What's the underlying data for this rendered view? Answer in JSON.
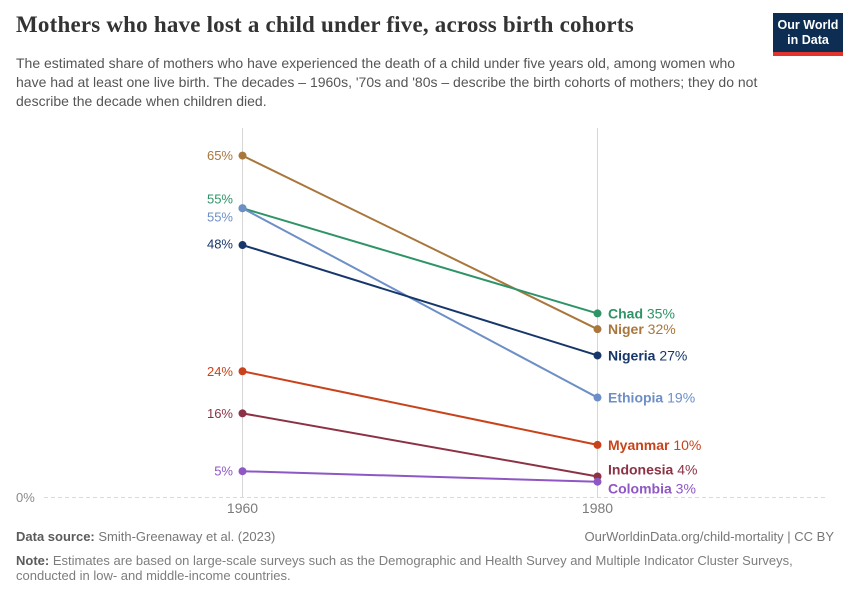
{
  "header": {
    "title": "Mothers who have lost a child under five, across birth cohorts",
    "subtitle": "The estimated share of mothers who have experienced the death of a child under five years old, among women who have had at least one live birth. The decades – 1960s, '70s and '80s – describe the birth cohorts of mothers; they do not describe the decade when children died.",
    "logo": {
      "line1": "Our World",
      "line2": "in Data",
      "bg_color": "#0d2d52",
      "bar_color": "#e0342c"
    }
  },
  "chart_data": {
    "type": "line",
    "variant": "slope",
    "title": "Mothers who have lost a child under five, across birth cohorts",
    "x": [
      1960,
      1980
    ],
    "x_labels": [
      "1960",
      "1980"
    ],
    "zero_label": "0%",
    "ylim": [
      0,
      70
    ],
    "grid": "zero-line-only",
    "legend_position": "right-inline",
    "series": [
      {
        "name": "Niger",
        "values": [
          65,
          32
        ],
        "color": "#A9763B",
        "left_dy": 0,
        "right_dy": 0
      },
      {
        "name": "Chad",
        "values": [
          55,
          35
        ],
        "color": "#2E9467",
        "left_dy": -9,
        "right_dy": 0
      },
      {
        "name": "Ethiopia",
        "values": [
          55,
          19
        ],
        "color": "#6D8FC7",
        "left_dy": 9,
        "right_dy": 0
      },
      {
        "name": "Nigeria",
        "values": [
          48,
          27
        ],
        "color": "#17376A",
        "left_dy": -1,
        "right_dy": 0
      },
      {
        "name": "Myanmar",
        "values": [
          24,
          10
        ],
        "color": "#C8431B",
        "left_dy": 0,
        "right_dy": 0
      },
      {
        "name": "Indonesia",
        "values": [
          16,
          4
        ],
        "color": "#8C3245",
        "left_dy": 0,
        "right_dy": -7
      },
      {
        "name": "Colombia",
        "values": [
          5,
          3
        ],
        "color": "#8E57C4",
        "left_dy": 0,
        "right_dy": 7
      }
    ]
  },
  "footer": {
    "source_label": "Data source:",
    "source_value": " Smith-Greenaway et al. (2023)",
    "citation": "OurWorldinData.org/child-mortality | CC BY",
    "note_label": "Note:",
    "note_value": " Estimates are based on large-scale surveys such as the Demographic and Health Survey and Multiple Indicator Cluster Surveys, conducted in low- and middle-income countries."
  }
}
